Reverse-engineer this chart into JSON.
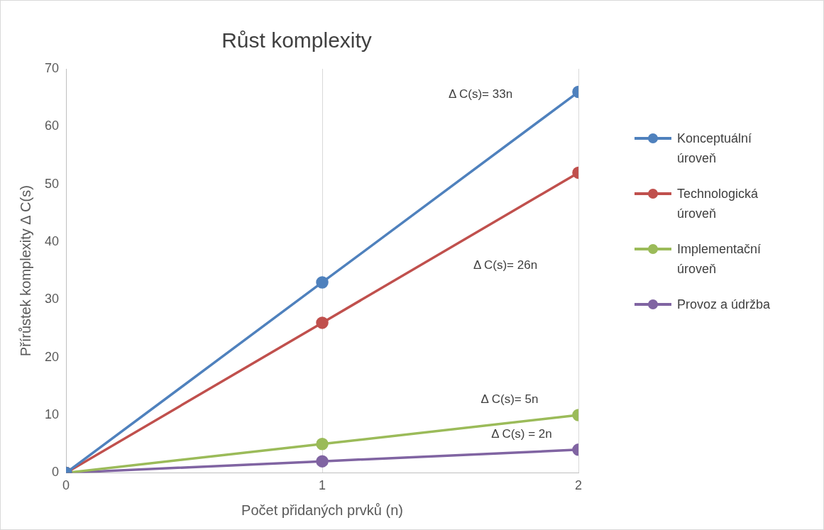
{
  "chart_data": {
    "type": "line",
    "title": "Růst komplexity",
    "xlabel": "Počet přidaných prvků (n)",
    "ylabel": "Přírůstek komplexity Δ C(s)",
    "x": [
      0,
      1,
      2
    ],
    "xlim": [
      0,
      2
    ],
    "xticks": [
      0,
      1,
      2
    ],
    "ylim": [
      0,
      70
    ],
    "yticks": [
      0,
      10,
      20,
      30,
      40,
      50,
      60,
      70
    ],
    "series": [
      {
        "name": "Konceptuální úroveň",
        "color": "#4f81bd",
        "values": [
          0,
          33,
          66
        ]
      },
      {
        "name": "Technologická úroveň",
        "color": "#c0504d",
        "values": [
          0,
          26,
          52
        ]
      },
      {
        "name": "Implementační úroveň",
        "color": "#9bbb59",
        "values": [
          0,
          5,
          10
        ]
      },
      {
        "name": "Provoz a údržba",
        "color": "#8064a2",
        "values": [
          0,
          2,
          4
        ]
      }
    ],
    "annotations": [
      "Δ C(s)= 33n",
      "Δ C(s)= 26n",
      "Δ C(s)= 5n",
      "Δ C(s) = 2n"
    ],
    "grid": "x",
    "legend": "right",
    "marker": "circle",
    "line_style": "solid"
  }
}
